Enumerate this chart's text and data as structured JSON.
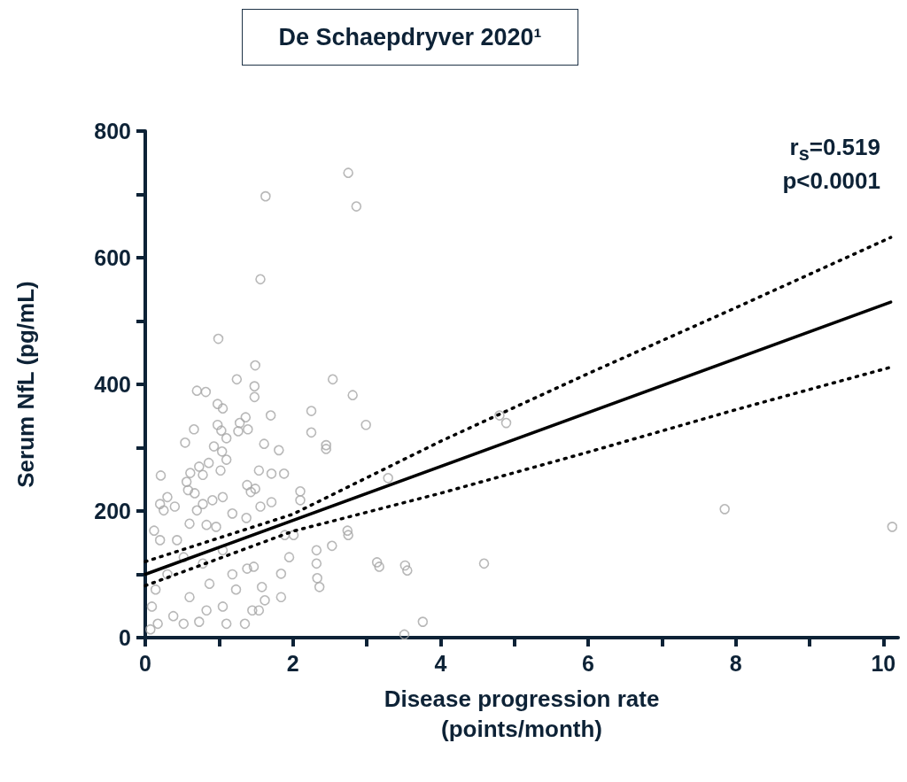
{
  "chart_data": {
    "type": "scatter",
    "title": "De Schaepdryver 2020¹",
    "xlabel": "Disease progression rate\n(points/month)",
    "ylabel": "Serum NfL (pg/mL)",
    "annotations": [
      "r$_{s}$=0.519",
      "p<0.0001"
    ],
    "xlim": [
      0,
      10.2
    ],
    "xticks": [
      0,
      {
        "value": 1,
        "label": null
      },
      2,
      {
        "value": 3,
        "label": null
      },
      4,
      {
        "value": 5,
        "label": null
      },
      6,
      {
        "value": 7,
        "label": null
      },
      8,
      {
        "value": 9,
        "label": null
      },
      10
    ],
    "ylim": [
      0,
      800
    ],
    "yticks": [
      0,
      {
        "value": 100,
        "label": null
      },
      200,
      {
        "value": 300,
        "label": null
      },
      400,
      {
        "value": 500,
        "label": null
      },
      600,
      {
        "value": 700,
        "label": null
      },
      800
    ],
    "grid": false,
    "series": [
      {
        "marker": "circle",
        "color": "#a6a6a6",
        "x": [
          1.63,
          2.75,
          2.86,
          1.56,
          0.99,
          1.49,
          1.24,
          1.48,
          1.48,
          0.7,
          0.82,
          0.98,
          1.05,
          1.36,
          1.7,
          1.28,
          1.39,
          1.26,
          0.98,
          1.03,
          0.66,
          0.54,
          0.93,
          1.1,
          1.04,
          1.1,
          1.02,
          1.61,
          1.81,
          2.25,
          2.25,
          2.54,
          2.81,
          2.99,
          2.45,
          2.45,
          0.21,
          0.61,
          0.78,
          0.73,
          0.86,
          1.54,
          1.71,
          1.88,
          0.56,
          0.67,
          0.58,
          0.3,
          0.2,
          1.05,
          1.38,
          1.49,
          1.43,
          1.71,
          2.1,
          2.1,
          1.56,
          1.37,
          0.25,
          0.7,
          0.91,
          0.78,
          0.4,
          0.12,
          0.2,
          0.6,
          0.83,
          1.89,
          2.01,
          1.95,
          2.32,
          2.32,
          2.53,
          2.74,
          3.14,
          3.52,
          2.33,
          2.36,
          1.84,
          1.84,
          1.58,
          1.62,
          1.45,
          1.54,
          1.35,
          1.47,
          1.38,
          1.1,
          0.73,
          3.51,
          1.23,
          1.05,
          0.87,
          0.6,
          0.38,
          0.17,
          0.14,
          0.3,
          0.52,
          0.78,
          1.05,
          1.18,
          0.43,
          0.96,
          1.18,
          0.83,
          0.52,
          0.07,
          0.09,
          7.85,
          10.12,
          4.59,
          3.76,
          3.55,
          3.17,
          4.8,
          4.89,
          3.29,
          2.75
        ],
        "values": [
          697,
          734,
          681,
          566,
          472,
          430,
          408,
          397,
          380,
          390,
          388,
          369,
          362,
          348,
          351,
          339,
          329,
          326,
          336,
          327,
          329,
          308,
          302,
          315,
          294,
          281,
          264,
          306,
          296,
          358,
          324,
          408,
          383,
          336,
          304,
          298,
          256,
          260,
          257,
          270,
          276,
          264,
          259,
          259,
          246,
          228,
          233,
          222,
          211,
          222,
          241,
          235,
          230,
          214,
          231,
          217,
          207,
          189,
          201,
          201,
          217,
          211,
          207,
          169,
          154,
          180,
          178,
          162,
          162,
          127,
          138,
          117,
          145,
          169,
          119,
          114,
          94,
          80,
          101,
          64,
          80,
          59,
          43,
          43,
          22,
          112,
          109,
          22,
          25,
          5,
          76,
          49,
          85,
          64,
          34,
          22,
          76,
          100,
          127,
          117,
          138,
          100,
          154,
          175,
          196,
          43,
          22,
          13,
          49,
          203,
          175,
          117,
          25,
          106,
          112,
          351,
          339,
          252,
          162
        ]
      },
      {
        "type": "line",
        "marker": "none",
        "line_style": "solid",
        "color": "#000000",
        "x": [
          0,
          10.1
        ],
        "values": [
          100,
          530
        ]
      },
      {
        "type": "line",
        "marker": "none",
        "line_style": "dotted",
        "color": "#000000",
        "x": [
          0,
          2,
          4,
          6,
          8,
          10.1
        ],
        "values": [
          120,
          195,
          310,
          417,
          521,
          632
        ]
      },
      {
        "type": "line",
        "marker": "none",
        "line_style": "dotted",
        "color": "#000000",
        "x": [
          0,
          2,
          4,
          6,
          8,
          10.1
        ],
        "values": [
          82,
          168,
          228,
          293,
          360,
          427
        ]
      }
    ]
  }
}
